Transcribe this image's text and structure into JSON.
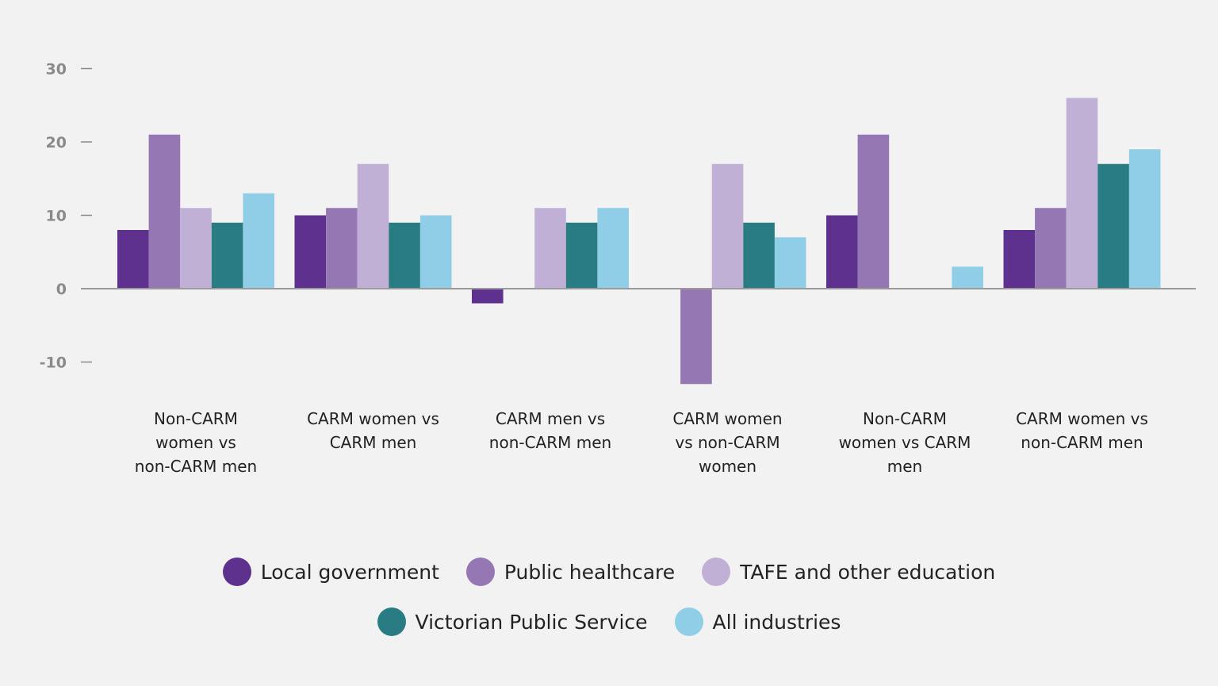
{
  "chart_data": {
    "type": "bar",
    "title": "",
    "xlabel": "",
    "ylabel": "",
    "ylim": [
      -10,
      30
    ],
    "yticks": [
      30,
      20,
      10,
      0,
      -10
    ],
    "grid": false,
    "legend_position": "bottom",
    "categories": [
      [
        "Non-CARM",
        "women vs",
        "non-CARM men"
      ],
      [
        "CARM women vs",
        "CARM men"
      ],
      [
        "CARM men vs",
        "non-CARM men"
      ],
      [
        "CARM women",
        "vs non-CARM",
        "women"
      ],
      [
        "Non-CARM",
        "women vs CARM",
        "men"
      ],
      [
        "CARM women vs",
        "non-CARM men"
      ]
    ],
    "series": [
      {
        "name": "Local government",
        "color": "#5f318f",
        "values": [
          8,
          10,
          -2,
          null,
          10,
          8
        ]
      },
      {
        "name": "Public healthcare",
        "color": "#9477b3",
        "values": [
          21,
          11,
          null,
          -13,
          21,
          11
        ]
      },
      {
        "name": "TAFE and other education",
        "color": "#c1b0d6",
        "values": [
          11,
          17,
          11,
          17,
          null,
          26
        ]
      },
      {
        "name": "Victorian Public Service",
        "color": "#297c83",
        "values": [
          9,
          9,
          9,
          9,
          null,
          17
        ]
      },
      {
        "name": "All industries",
        "color": "#8fcee6",
        "values": [
          13,
          10,
          11,
          7,
          3,
          19
        ]
      }
    ]
  }
}
